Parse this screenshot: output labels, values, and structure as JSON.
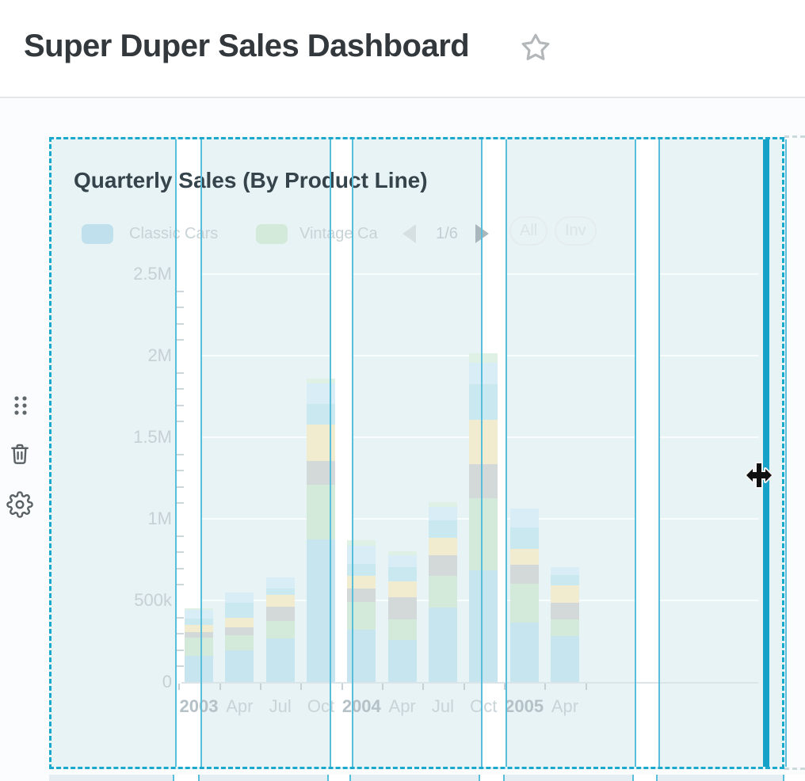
{
  "page": {
    "title": "Super Duper Sales Dashboard"
  },
  "icons": {
    "favorite": "star-icon",
    "toolbar": [
      "drag-handle-icon",
      "trash-icon",
      "gear-icon"
    ],
    "legend_pager": [
      "chevron-left-icon",
      "chevron-right-icon"
    ],
    "pointer": "move-resize-cursor"
  },
  "dashcard": {
    "title": "Quarterly Sales (By Product Line)",
    "legend": {
      "items": [
        {
          "label": "Classic Cars",
          "color": "#bfe0ec"
        },
        {
          "label": "Vintage Ca",
          "color": "#d3e9da"
        }
      ],
      "pager": {
        "page": "1/6"
      },
      "selector": {
        "all": "All",
        "inverse": "Inv"
      }
    }
  },
  "colors": {
    "selection_teal": "#18a9cd",
    "grid_band": "#e8f3f6",
    "grid_column_line": "#58bed9",
    "resize_edge": "#16a2c8"
  },
  "chart_data": {
    "type": "bar",
    "stacked": true,
    "title": "Quarterly Sales (By Product Line)",
    "x_tick_labels": [
      "2003",
      "Apr",
      "Jul",
      "Oct",
      "2004",
      "Apr",
      "Jul",
      "Oct",
      "2005",
      "Apr"
    ],
    "y_ticks": [
      {
        "label": "0",
        "value": 0
      },
      {
        "label": "500k",
        "value": 500000
      },
      {
        "label": "1M",
        "value": 1000000
      },
      {
        "label": "1.5M",
        "value": 1500000
      },
      {
        "label": "2M",
        "value": 2000000
      },
      {
        "label": "2.5M",
        "value": 2500000
      }
    ],
    "ylim": [
      0,
      2500000
    ],
    "grid": true,
    "legend_position": "top",
    "legend_pages": "1/6",
    "legend_visible_items": [
      "Classic Cars",
      "Vintage Ca"
    ],
    "series": [
      {
        "name": "Classic Cars",
        "color": "#c6e5ee",
        "values": [
          160000,
          195000,
          265000,
          875000,
          320000,
          255000,
          455000,
          685000,
          365000,
          280000
        ]
      },
      {
        "name": "Vintage Ca",
        "color": "#d3e9da",
        "values": [
          110000,
          90000,
          110000,
          335000,
          170000,
          130000,
          195000,
          440000,
          235000,
          105000
        ]
      },
      {
        "name": "unlabeled-series-3-gray",
        "color": "#d3d9d9",
        "values": [
          35000,
          50000,
          85000,
          145000,
          85000,
          135000,
          125000,
          210000,
          120000,
          100000
        ]
      },
      {
        "name": "unlabeled-series-4-cream",
        "color": "#f1ebd0",
        "values": [
          45000,
          60000,
          75000,
          225000,
          75000,
          95000,
          110000,
          270000,
          95000,
          105000
        ]
      },
      {
        "name": "unlabeled-series-5-cyan",
        "color": "#c9e8ef",
        "values": [
          40000,
          90000,
          40000,
          125000,
          75000,
          90000,
          105000,
          220000,
          130000,
          65000
        ]
      },
      {
        "name": "unlabeled-series-6-paleblue",
        "color": "#d9edf6",
        "values": [
          50000,
          65000,
          65000,
          125000,
          110000,
          70000,
          85000,
          130000,
          120000,
          50000
        ]
      },
      {
        "name": "unlabeled-series-7-palegreen",
        "color": "#dff0e4",
        "values": [
          10000,
          0,
          0,
          30000,
          35000,
          25000,
          25000,
          60000,
          0,
          0
        ]
      }
    ]
  }
}
